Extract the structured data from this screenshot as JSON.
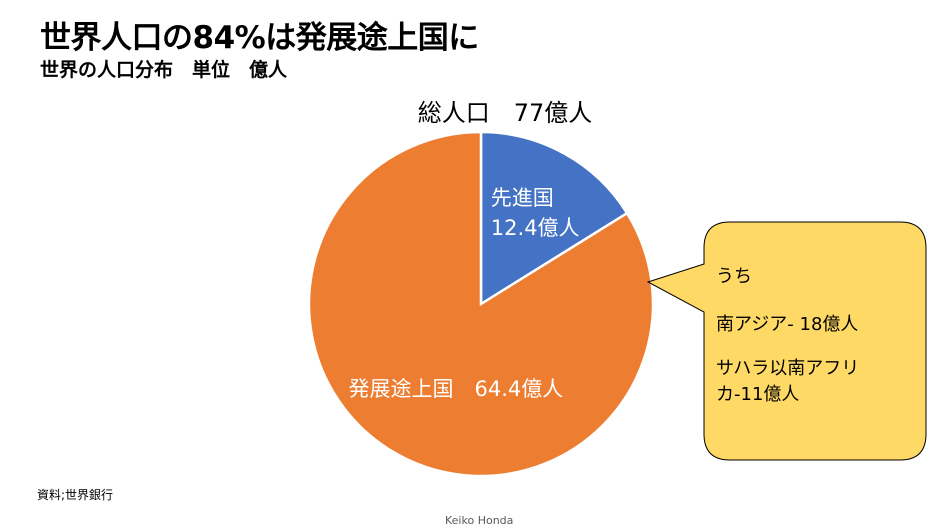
{
  "header": {
    "title": "世界人口の84%は発展途上国に",
    "subtitle": "世界の人口分布　単位　億人"
  },
  "chart_data": {
    "type": "pie",
    "total_label": "総人口　77億人",
    "slices": [
      {
        "name": "先進国",
        "value": 12.4,
        "value_label": "12.4億人",
        "color": "#4472C4"
      },
      {
        "name": "発展途上国",
        "value": 64.4,
        "value_label": "64.4億人",
        "color": "#ED7D31"
      }
    ]
  },
  "callout": {
    "lines": [
      "うち",
      "南アジア- 18億人",
      "サハラ以南アフリ",
      "カ-11億人"
    ],
    "fill": "#FFD966",
    "stroke": "#000000"
  },
  "footer": {
    "source": "資料;世界銀行",
    "author": "Keiko Honda"
  }
}
